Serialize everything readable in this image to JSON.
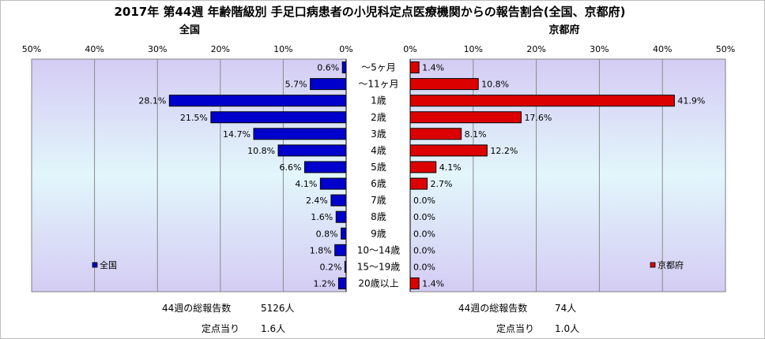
{
  "title": "2017年 第44週 年齢階級別 手足口病患者の小児科定点医療機関からの報告割合(全国、京都府)",
  "chart_data": {
    "type": "bar",
    "title": "2017年 第44週 年齢階級別 手足口病患者の小児科定点医療機関からの報告割合(全国、京都府)",
    "categories": [
      "～5ヶ月",
      "～11ヶ月",
      "1歳",
      "2歳",
      "3歳",
      "4歳",
      "5歳",
      "6歳",
      "7歳",
      "8歳",
      "9歳",
      "10～14歳",
      "15～19歳",
      "20歳以上"
    ],
    "panels": [
      {
        "name": "全国",
        "legend": "全国",
        "color": "#0000cc",
        "values": [
          0.6,
          5.7,
          28.1,
          21.5,
          14.7,
          10.8,
          6.6,
          4.1,
          2.4,
          1.6,
          0.8,
          1.8,
          0.2,
          1.2
        ],
        "data_labels": [
          "0.6%",
          "5.7%",
          "28.1%",
          "21.5%",
          "14.7%",
          "10.8%",
          "6.6%",
          "4.1%",
          "2.4%",
          "1.6%",
          "0.8%",
          "1.8%",
          "0.2%",
          "1.2%"
        ],
        "axis_direction": "reversed",
        "xlim": [
          0,
          50
        ],
        "ticks": [
          "50%",
          "40%",
          "30%",
          "20%",
          "10%",
          "0%"
        ]
      },
      {
        "name": "京都府",
        "legend": "京都府",
        "color": "#dd0000",
        "values": [
          1.4,
          10.8,
          41.9,
          17.6,
          8.1,
          12.2,
          4.1,
          2.7,
          0.0,
          0.0,
          0.0,
          0.0,
          0.0,
          1.4
        ],
        "data_labels": [
          "1.4%",
          "10.8%",
          "41.9%",
          "17.6%",
          "8.1%",
          "12.2%",
          "4.1%",
          "2.7%",
          "0.0%",
          "0.0%",
          "0.0%",
          "0.0%",
          "0.0%",
          "1.4%"
        ],
        "axis_direction": "normal",
        "xlim": [
          0,
          50
        ],
        "ticks": [
          "0%",
          "10%",
          "20%",
          "30%",
          "40%",
          "50%"
        ]
      }
    ],
    "grid": true,
    "legend_position": "bottom-left (全国), bottom-right (京都府)"
  },
  "stats": {
    "national": {
      "total_label": "44週の総報告数",
      "total_value": "5126人",
      "per_label": "定点当り",
      "per_value": "1.6人"
    },
    "kyoto": {
      "total_label": "44週の総報告数",
      "total_value": "74人",
      "per_label": "定点当り",
      "per_value": "1.0人"
    }
  }
}
